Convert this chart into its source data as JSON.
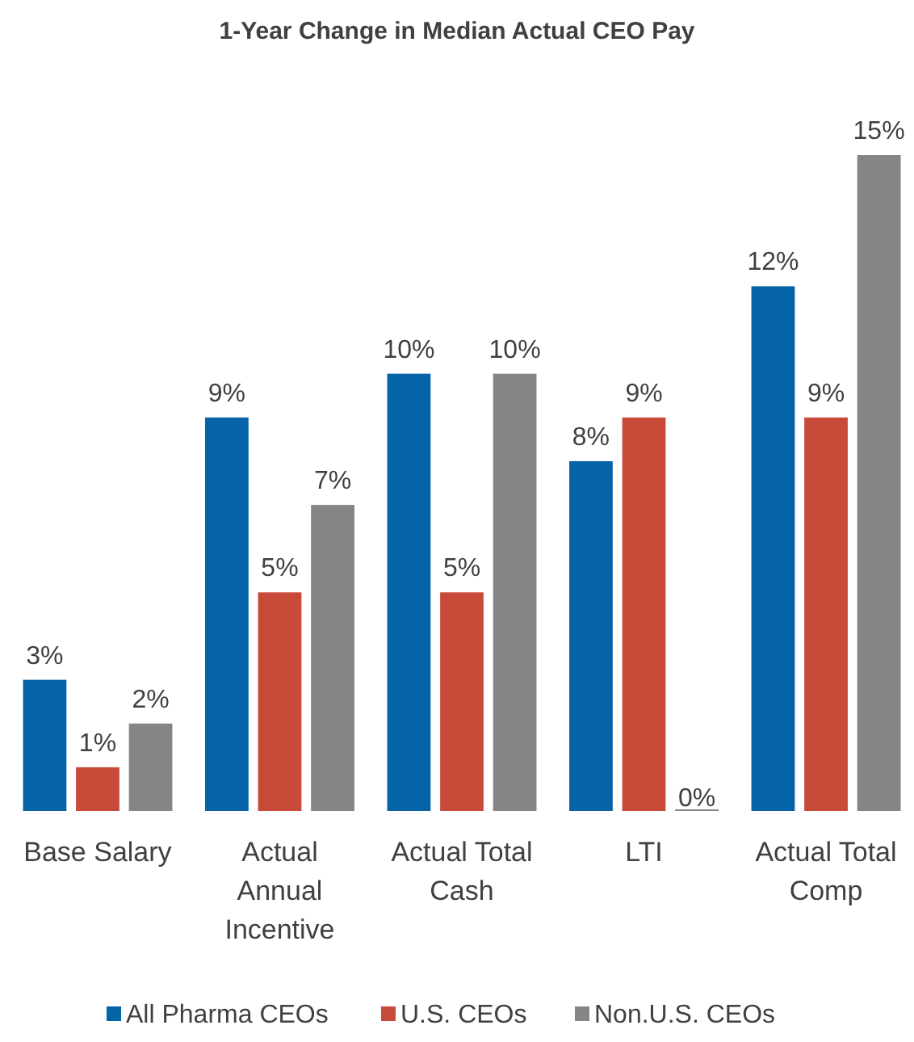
{
  "chart_data": {
    "type": "bar",
    "title": "1-Year Change in Median Actual CEO Pay",
    "categories": [
      "Base Salary",
      "Actual Annual Incentive",
      "Actual Total Cash",
      "LTI",
      "Actual Total Comp"
    ],
    "series": [
      {
        "name": "All Pharma CEOs",
        "color": "#0563a8",
        "values": [
          3,
          9,
          10,
          8,
          12
        ],
        "value_labels": [
          "3%",
          "9%",
          "10%",
          "8%",
          "12%"
        ]
      },
      {
        "name": "U.S. CEOs",
        "color": "#c84a38",
        "values": [
          1,
          5,
          5,
          9,
          9
        ],
        "value_labels": [
          "1%",
          "5%",
          "5%",
          "9%",
          "9%"
        ]
      },
      {
        "name": "Non.U.S. CEOs",
        "color": "#858585",
        "values": [
          2,
          7,
          10,
          0,
          15
        ],
        "value_labels": [
          "2%",
          "7%",
          "10%",
          "0%",
          "15%"
        ]
      }
    ],
    "legend": "bottom"
  }
}
